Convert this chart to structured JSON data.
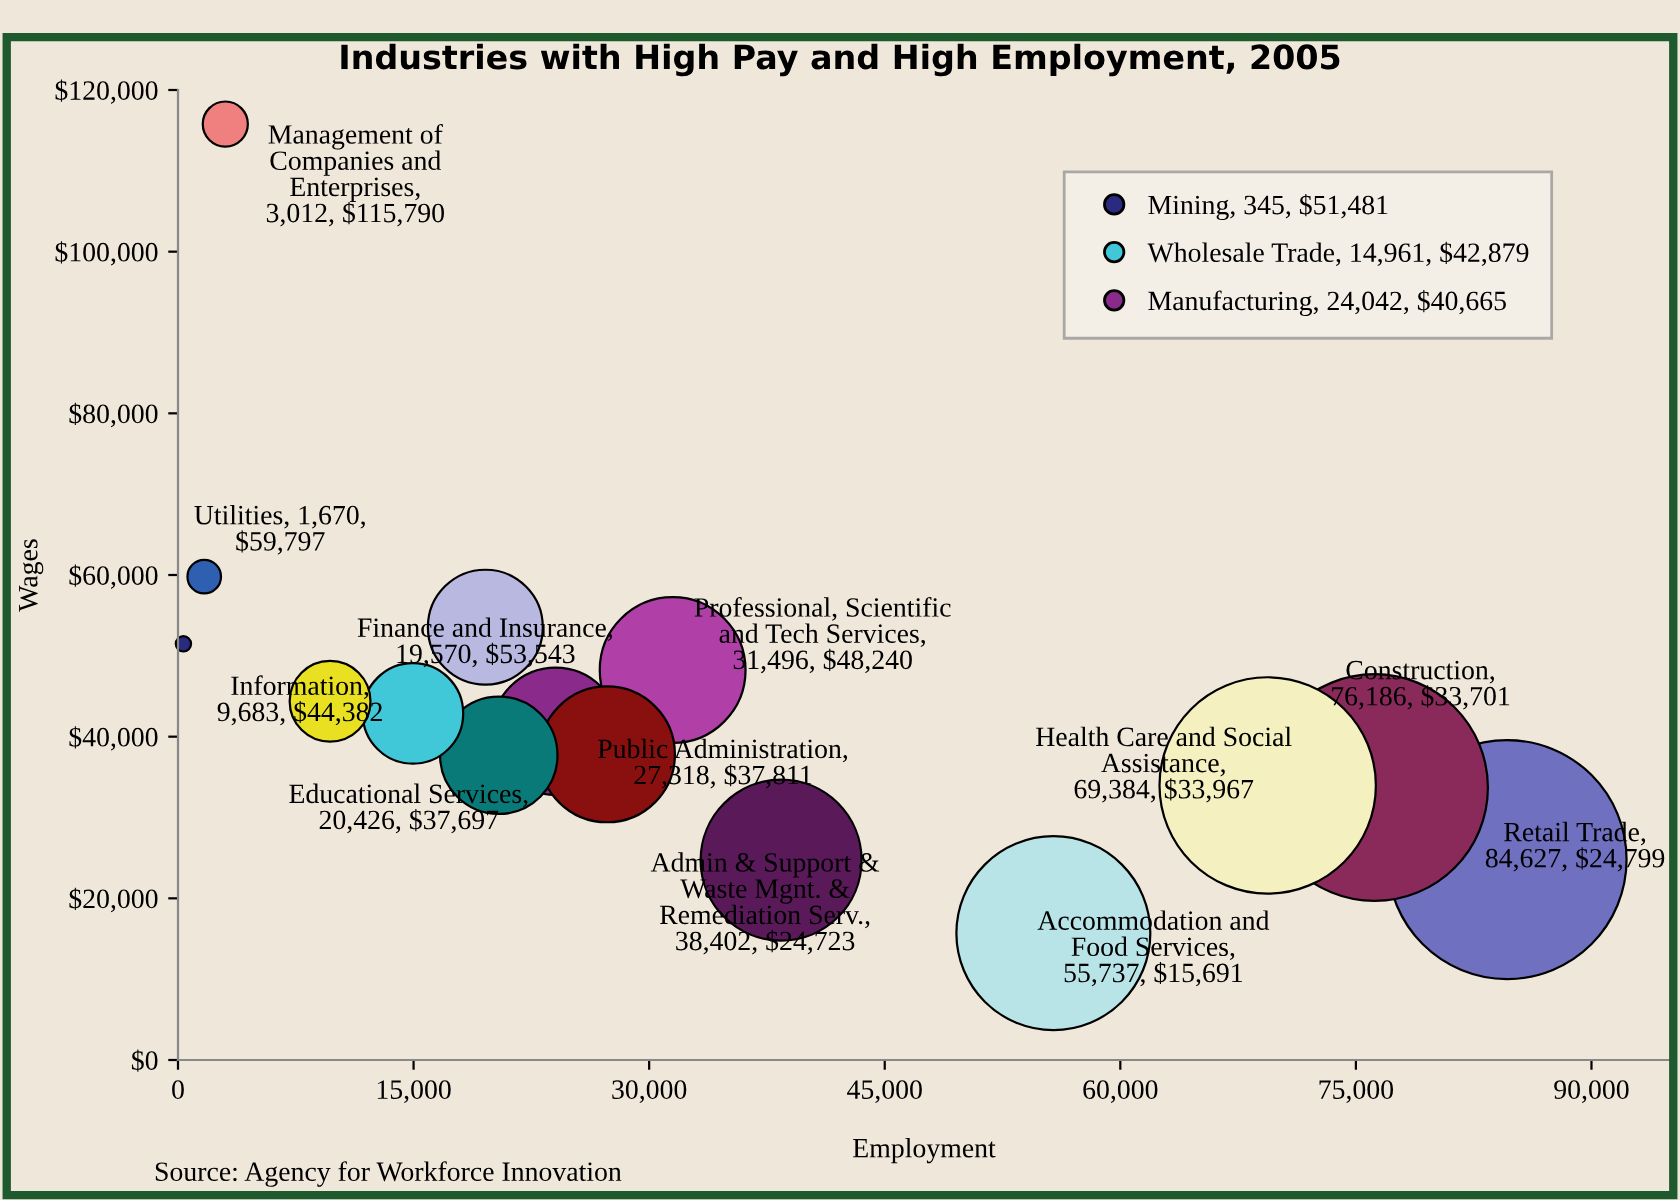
{
  "chart_data": {
    "type": "bubble",
    "title": "Industries with High Pay and High Employment, 2005",
    "xlabel": "Employment",
    "ylabel": "Wages",
    "xlim": [
      0,
      95000
    ],
    "xticks": [
      {
        "value": 0,
        "label": "0"
      },
      {
        "value": 15000,
        "label": "15,000"
      },
      {
        "value": 30000,
        "label": "30,000"
      },
      {
        "value": 45000,
        "label": "45,000"
      },
      {
        "value": 60000,
        "label": "60,000"
      },
      {
        "value": 75000,
        "label": "75,000"
      },
      {
        "value": 90000,
        "label": "90,000"
      }
    ],
    "ylim": [
      0,
      120000
    ],
    "yticks": [
      {
        "value": 0,
        "label": "$0"
      },
      {
        "value": 20000,
        "label": "$20,000"
      },
      {
        "value": 40000,
        "label": "$40,000"
      },
      {
        "value": 60000,
        "label": "$60,000"
      },
      {
        "value": 80000,
        "label": "$80,000"
      },
      {
        "value": 100000,
        "label": "$100,000"
      },
      {
        "value": 120000,
        "label": "$120,000"
      }
    ],
    "grid": false,
    "legend": "top right",
    "annotations": [
      "Source: Agency for Workforce Innovation"
    ],
    "series": [
      {
        "color": "#7070c0",
        "x": [
          84627
        ],
        "values": [
          24799
        ],
        "sizes": [
          1
        ],
        "value_labels": [
          "Retail Trade,\n84,627, $24,799"
        ]
      },
      {
        "color": "#8a2a5a",
        "x": [
          76186
        ],
        "values": [
          33701
        ],
        "sizes": [
          0.9003
        ],
        "value_labels": [
          "Construction,\n76,186, $33,701"
        ]
      },
      {
        "color": "#f4f0c0",
        "x": [
          69384
        ],
        "values": [
          33967
        ],
        "sizes": [
          0.8199
        ],
        "value_labels": [
          "Health Care and Social\nAssistance,\n69,384, $33,967"
        ]
      },
      {
        "color": "#b8e4e8",
        "x": [
          55737
        ],
        "values": [
          15691
        ],
        "sizes": [
          0.6586
        ],
        "value_labels": [
          "Accommodation and\nFood Services,\n55,737, $15,691"
        ]
      },
      {
        "color": "#5a1a5a",
        "x": [
          38402
        ],
        "values": [
          24723
        ],
        "sizes": [
          0.4538
        ],
        "value_labels": [
          "Admin & Support &\nWaste Mgnt. &\nRemediation Serv.,\n38,402, $24,723"
        ]
      },
      {
        "color": "#b040a8",
        "x": [
          31496
        ],
        "values": [
          48240
        ],
        "sizes": [
          0.3722
        ],
        "value_labels": [
          "Professional, Scientific\nand Tech Services,\n31,496, $48,240"
        ]
      },
      {
        "name": "Manufacturing, 24,042, $40,665",
        "color": "#8a2a8a",
        "x": [
          24042
        ],
        "values": [
          40665
        ],
        "sizes": [
          0.2841
        ]
      },
      {
        "color": "#8a1010",
        "x": [
          27318
        ],
        "values": [
          37811
        ],
        "sizes": [
          0.3228
        ],
        "value_labels": [
          "Public Administration,\n27,318, $37,811"
        ]
      },
      {
        "color": "#0a7a78",
        "x": [
          20426
        ],
        "values": [
          37697
        ],
        "sizes": [
          0.2414
        ],
        "value_labels": [
          "Educational Services,\n20,426, $37,697"
        ]
      },
      {
        "color": "#b8b8e0",
        "x": [
          19570
        ],
        "values": [
          53543
        ],
        "sizes": [
          0.2312
        ],
        "value_labels": [
          "Finance and Insurance,\n19,570, $53,543"
        ]
      },
      {
        "name": "Wholesale Trade, 14,961, $42,879",
        "color": "#40c8d8",
        "x": [
          14961
        ],
        "values": [
          42879
        ],
        "sizes": [
          0.1768
        ]
      },
      {
        "color": "#e8e020",
        "x": [
          9683
        ],
        "values": [
          44382
        ],
        "sizes": [
          0.1144
        ],
        "value_labels": [
          "Information,\n9,683, $44,382"
        ]
      },
      {
        "name": "Mining, 345, $51,481",
        "color": "#2a2a80",
        "x": [
          345
        ],
        "values": [
          51481
        ],
        "sizes": [
          0.0041
        ]
      },
      {
        "color": "#2e5fb0",
        "x": [
          1670
        ],
        "values": [
          59797
        ],
        "sizes": [
          0.0197
        ],
        "value_labels": [
          "Utilities, 1,670,\n$59,797"
        ]
      },
      {
        "color": "#f08080",
        "x": [
          3012
        ],
        "values": [
          115790
        ],
        "sizes": [
          0.0356
        ],
        "value_labels": [
          "Management of\nCompanies and\nEnterprises,\n3,012, $115,790"
        ]
      }
    ]
  }
}
